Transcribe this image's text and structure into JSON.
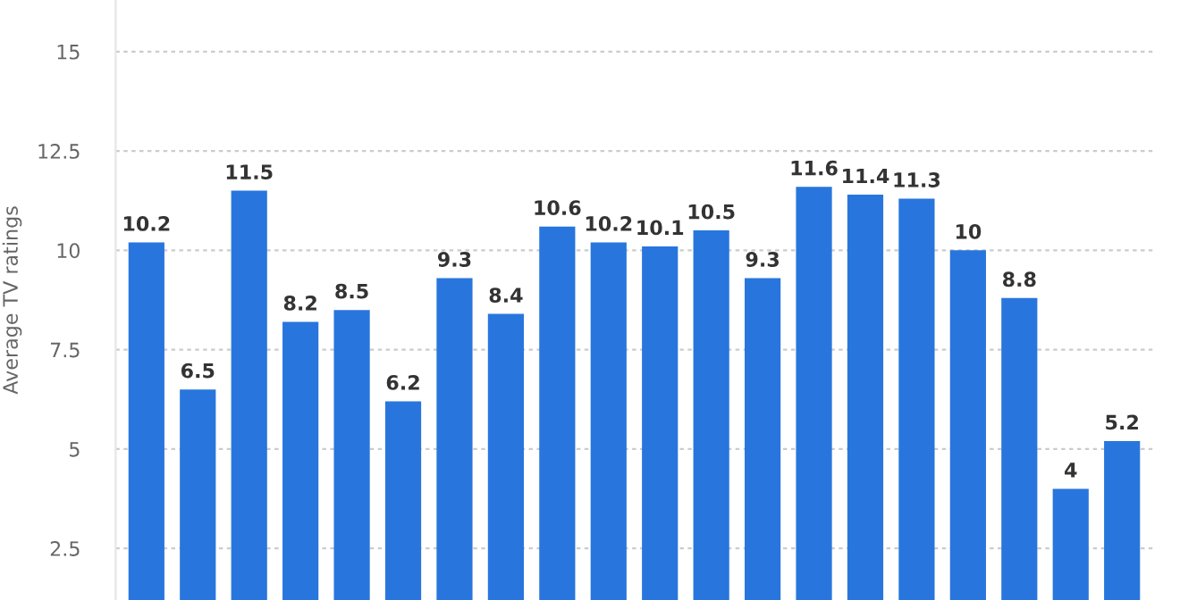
{
  "chart_data": {
    "type": "bar",
    "ylabel": "Average TV ratings",
    "categories": [
      null,
      null,
      null,
      null,
      null,
      null,
      null,
      null,
      null,
      null,
      null,
      null,
      null,
      null,
      null,
      null,
      null,
      null,
      null,
      null
    ],
    "values": [
      10.2,
      6.5,
      11.5,
      8.2,
      8.5,
      6.2,
      9.3,
      8.4,
      10.6,
      10.2,
      10.1,
      10.5,
      9.3,
      11.6,
      11.4,
      11.3,
      10,
      8.8,
      4,
      5.2
    ],
    "color": "#2876dd",
    "ylim": [
      1.2,
      16.3
    ],
    "yticks": [
      2.5,
      5,
      7.5,
      10,
      12.5,
      15
    ],
    "grid": "y",
    "data_labels": true,
    "tick_labels": "y"
  }
}
